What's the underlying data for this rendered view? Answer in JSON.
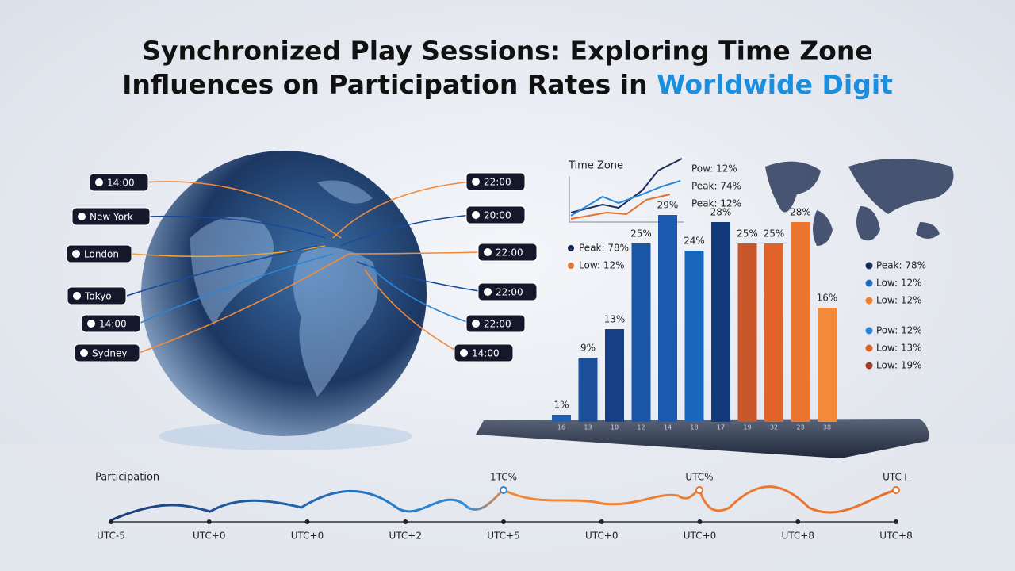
{
  "title": {
    "line1": "Synchronized Play Sessions: Exploring Time Zone",
    "line2": "Influences on Participation Rates in ",
    "highlight": "Worldwide Digit"
  },
  "globe_labels": {
    "left": [
      "14:00",
      "New York",
      "London",
      "Tokyo",
      "14:00",
      "Sydney"
    ],
    "right": [
      "22:00",
      "20:00",
      "22:00",
      "22:00",
      "22:00",
      "14:00"
    ]
  },
  "mini_chart": {
    "title": "Time Zone",
    "labels": [
      "Pow: 12%",
      "Peak: 74%",
      "Peak: 12%"
    ]
  },
  "chart_data": {
    "type": "bar",
    "categories": [
      "16",
      "13",
      "10",
      "12",
      "14",
      "18",
      "17",
      "19",
      "32",
      "23",
      "38"
    ],
    "values": [
      1,
      9,
      13,
      25,
      29,
      24,
      28,
      25,
      25,
      28,
      16
    ],
    "value_labels": [
      "1%",
      "9%",
      "13%",
      "25%",
      "29%",
      "24%",
      "28%",
      "25%",
      "25%",
      "28%",
      "16%"
    ],
    "colors": [
      "#1f5fb0",
      "#1b4f9a",
      "#173f86",
      "#1a56a8",
      "#1a5ab0",
      "#1966bd",
      "#123a7a",
      "#c9552a",
      "#e0642a",
      "#ec7630",
      "#f28a3a"
    ]
  },
  "bar_legend": [
    {
      "label": "Peak: 78%",
      "color": "#1b2e5c"
    },
    {
      "label": "Low: 12%",
      "color": "#e8772e"
    }
  ],
  "side_legend": [
    {
      "label": "Peak: 78%",
      "color": "#1b2e5c"
    },
    {
      "label": "Low: 12%",
      "color": "#1f6fc0"
    },
    {
      "label": "Low: 12%",
      "color": "#f0802a"
    },
    {
      "label": "Pow: 12%",
      "color": "#2a86d6"
    },
    {
      "label": "Low: 13%",
      "color": "#e0642a"
    },
    {
      "label": "Low: 19%",
      "color": "#9a3a22"
    }
  ],
  "timeline": {
    "label": "Participation",
    "ticks": [
      "UTC-5",
      "UTC+0",
      "UTC+0",
      "UTC+2",
      "UTC+5",
      "UTC+0",
      "UTC+0",
      "UTC+8",
      "UTC+8"
    ],
    "annotations": [
      "1TC%",
      "UTC%",
      "UTC+"
    ]
  }
}
